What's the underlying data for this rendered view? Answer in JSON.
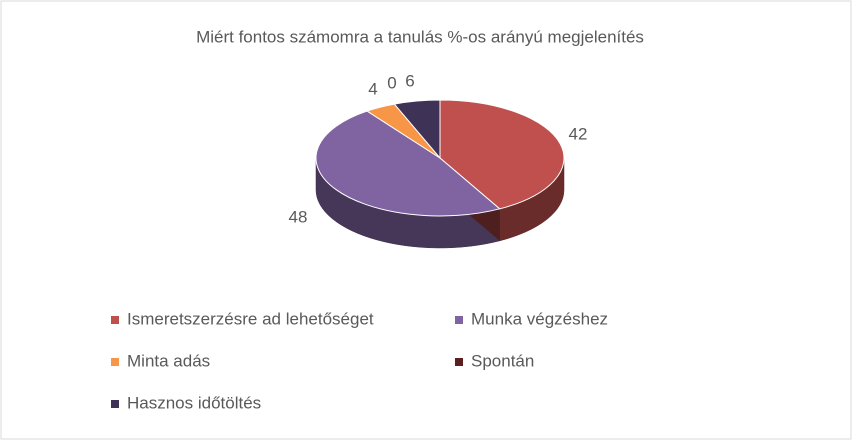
{
  "chart_data": {
    "type": "pie3d",
    "title": "Miért fontos számomra a tanulás %-os arányú megjelenítés",
    "categories": [
      "Ismeretszerzésre ad lehetőséget",
      "Munka végzéshez",
      "Minta adás",
      "Spontán",
      "Hasznos időtöltés"
    ],
    "values": [
      42,
      48,
      4,
      0,
      6
    ],
    "colors": [
      "#c0504d",
      "#8064a2",
      "#f79646",
      "#5a1f1e",
      "#3f3257"
    ],
    "legend": "bottom"
  }
}
